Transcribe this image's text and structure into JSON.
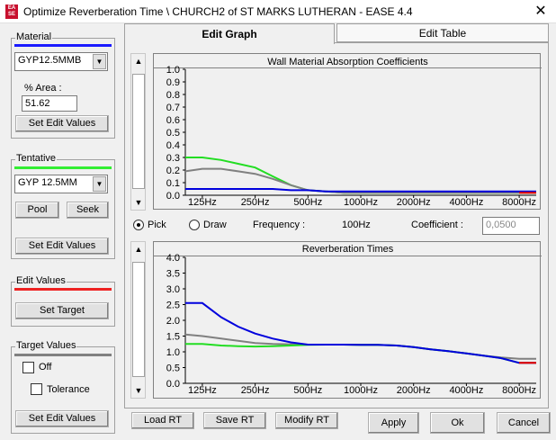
{
  "window": {
    "title": "Optimize Reverberation Time \\ CHURCH2 of ST MARKS LUTHERAN - EASE 4.4",
    "close_glyph": "✕",
    "icon_text_1": "EA",
    "icon_text_2": "SE"
  },
  "left_panel": {
    "material": {
      "title": "Material",
      "line_color": "#1a1aff",
      "combo_value": "GYP12.5MMB",
      "area_label": "% Area :",
      "area_value": "51.62",
      "set_edit_values": "Set Edit Values"
    },
    "tentative": {
      "title": "Tentative",
      "line_color": "#33ee33",
      "combo_value": "GYP 12.5MM",
      "pool": "Pool",
      "seek": "Seek",
      "set_edit_values": "Set Edit Values"
    },
    "edit_values": {
      "title": "Edit Values",
      "line_color": "#ee2222",
      "set_target": "Set Target"
    },
    "target_values": {
      "title": "Target Values",
      "line_color": "#808080",
      "off_label": "Off",
      "tolerance_label": "Tolerance",
      "set_edit_values": "Set Edit Values"
    }
  },
  "tabs": {
    "edit_graph": "Edit Graph",
    "edit_table": "Edit Table"
  },
  "mode_row": {
    "pick": "Pick",
    "draw": "Draw",
    "frequency_label": "Frequency :",
    "frequency_value": "100Hz",
    "coefficient_label": "Coefficient :",
    "coefficient_value": "0,0500"
  },
  "bottom_buttons": {
    "load_rt": "Load RT",
    "save_rt": "Save RT",
    "modify_rt": "Modify RT",
    "apply": "Apply",
    "ok": "Ok",
    "cancel": "Cancel"
  },
  "chart_data": [
    {
      "type": "line",
      "title": "Wall Material Absorption Coefficients",
      "x": [
        100,
        125,
        160,
        200,
        250,
        315,
        400,
        500,
        630,
        800,
        1000,
        1250,
        1600,
        2000,
        2500,
        3150,
        4000,
        5000,
        6300,
        8000,
        10000
      ],
      "tick_labels": [
        "125Hz",
        "250Hz",
        "500Hz",
        "1000Hz",
        "2000Hz",
        "4000Hz",
        "8000Hz"
      ],
      "yticks": [
        "1.0",
        "0.9",
        "0.8",
        "0.7",
        "0.6",
        "0.5",
        "0.4",
        "0.3",
        "0.2",
        "0.1",
        "0.0"
      ],
      "ylim": [
        0,
        1
      ],
      "series": [
        {
          "name": "Tentative",
          "color": "#22dd22",
          "values": [
            0.3,
            0.3,
            0.28,
            0.25,
            0.22,
            0.15,
            0.08,
            0.04,
            0.03,
            0.02,
            0.02,
            0.02,
            0.02,
            0.02,
            0.02,
            0.02,
            0.02,
            0.02,
            0.02,
            0.02,
            0.02
          ]
        },
        {
          "name": "Target",
          "color": "#808080",
          "values": [
            0.19,
            0.21,
            0.21,
            0.19,
            0.17,
            0.13,
            0.08,
            0.04,
            0.03,
            0.02,
            0.02,
            0.02,
            0.02,
            0.02,
            0.02,
            0.02,
            0.02,
            0.02,
            0.02,
            0.02,
            0.02
          ]
        },
        {
          "name": "Material",
          "color": "#0000dd",
          "values": [
            0.05,
            0.05,
            0.05,
            0.05,
            0.05,
            0.05,
            0.04,
            0.04,
            0.03,
            0.03,
            0.03,
            0.03,
            0.03,
            0.03,
            0.03,
            0.03,
            0.03,
            0.03,
            0.03,
            0.03,
            0.03
          ]
        },
        {
          "name": "Edit",
          "color": "#ee0000",
          "values": [
            null,
            null,
            null,
            null,
            null,
            null,
            null,
            null,
            null,
            null,
            null,
            null,
            null,
            null,
            null,
            null,
            null,
            null,
            null,
            0.02,
            0.02
          ]
        }
      ]
    },
    {
      "type": "line",
      "title": "Reverberation Times",
      "x": [
        100,
        125,
        160,
        200,
        250,
        315,
        400,
        500,
        630,
        800,
        1000,
        1250,
        1600,
        2000,
        2500,
        3150,
        4000,
        5000,
        6300,
        8000,
        10000
      ],
      "tick_labels": [
        "125Hz",
        "250Hz",
        "500Hz",
        "1000Hz",
        "2000Hz",
        "4000Hz",
        "8000Hz"
      ],
      "yticks": [
        "4.0",
        "3.5",
        "3.0",
        "2.5",
        "2.0",
        "1.5",
        "1.0",
        "0.5",
        "0.0"
      ],
      "ylim": [
        0,
        4
      ],
      "series": [
        {
          "name": "Target",
          "color": "#808080",
          "values": [
            1.55,
            1.5,
            1.42,
            1.35,
            1.28,
            1.25,
            1.24,
            1.23,
            1.23,
            1.23,
            1.22,
            1.22,
            1.2,
            1.15,
            1.08,
            1.02,
            0.95,
            0.88,
            0.82,
            0.78,
            0.78
          ]
        },
        {
          "name": "Tentative",
          "color": "#22dd22",
          "values": [
            1.25,
            1.25,
            1.2,
            1.18,
            1.17,
            1.18,
            1.2,
            1.22,
            1.23,
            1.23,
            1.22,
            1.22,
            1.2,
            1.15,
            1.08,
            1.02,
            0.95,
            0.88,
            0.8,
            0.65,
            0.65
          ]
        },
        {
          "name": "Material",
          "color": "#0000dd",
          "values": [
            2.55,
            2.55,
            2.1,
            1.8,
            1.58,
            1.42,
            1.3,
            1.23,
            1.23,
            1.23,
            1.22,
            1.22,
            1.2,
            1.15,
            1.08,
            1.02,
            0.95,
            0.88,
            0.8,
            0.65,
            0.65
          ]
        },
        {
          "name": "Edit",
          "color": "#ee0000",
          "values": [
            null,
            null,
            null,
            null,
            null,
            null,
            null,
            null,
            null,
            null,
            null,
            null,
            null,
            null,
            null,
            null,
            null,
            null,
            null,
            0.65,
            0.65
          ]
        }
      ]
    }
  ]
}
